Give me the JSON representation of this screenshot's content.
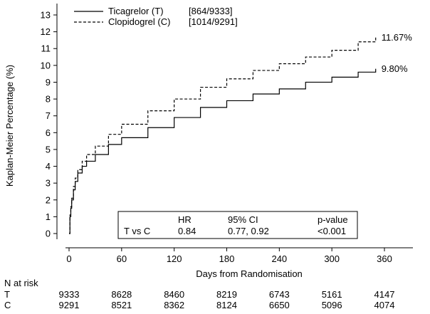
{
  "chart_data": {
    "type": "line",
    "xlabel": "Days from Randomisation",
    "ylabel": "Kaplan-Meier Percentage (%)",
    "xlim": [
      0,
      360
    ],
    "ylim": [
      0,
      13
    ],
    "xticks": [
      0,
      60,
      120,
      180,
      240,
      300,
      360
    ],
    "yticks": [
      0,
      1,
      2,
      3,
      4,
      5,
      6,
      7,
      8,
      9,
      10,
      11,
      12,
      13
    ],
    "legend_position": "top-left",
    "series": [
      {
        "name": "Ticagrelor (T)",
        "count": "[864/9333]",
        "line_style": "solid",
        "end_label": "9.80%",
        "x": [
          0,
          1,
          2,
          3,
          5,
          7,
          10,
          15,
          20,
          30,
          45,
          60,
          90,
          120,
          150,
          180,
          210,
          240,
          270,
          300,
          330,
          350
        ],
        "y": [
          0,
          1.0,
          1.5,
          2.0,
          2.6,
          3.1,
          3.6,
          4.0,
          4.3,
          4.7,
          5.3,
          5.7,
          6.3,
          6.9,
          7.5,
          7.9,
          8.3,
          8.6,
          9.0,
          9.3,
          9.6,
          9.8
        ]
      },
      {
        "name": "Clopidogrel (C)",
        "count": "[1014/9291]",
        "line_style": "dashed",
        "end_label": "11.67%",
        "x": [
          0,
          1,
          2,
          3,
          5,
          7,
          10,
          15,
          20,
          30,
          45,
          60,
          90,
          120,
          150,
          180,
          210,
          240,
          270,
          300,
          330,
          350
        ],
        "y": [
          0,
          1.1,
          1.6,
          2.1,
          2.8,
          3.3,
          3.8,
          4.3,
          4.7,
          5.2,
          5.9,
          6.5,
          7.3,
          8.0,
          8.7,
          9.2,
          9.7,
          10.1,
          10.5,
          10.9,
          11.4,
          11.67
        ]
      }
    ],
    "stats_box": {
      "headers": [
        "",
        "HR",
        "95% CI",
        "p-value"
      ],
      "row": [
        "T vs C",
        "0.84",
        "0.77, 0.92",
        "<0.001"
      ]
    },
    "at_risk": {
      "title": "N at risk",
      "rows": [
        {
          "label": "T",
          "values": [
            "9333",
            "8628",
            "8460",
            "8219",
            "6743",
            "5161",
            "4147"
          ]
        },
        {
          "label": "C",
          "values": [
            "9291",
            "8521",
            "8362",
            "8124",
            "6650",
            "5096",
            "4074"
          ]
        }
      ]
    }
  }
}
